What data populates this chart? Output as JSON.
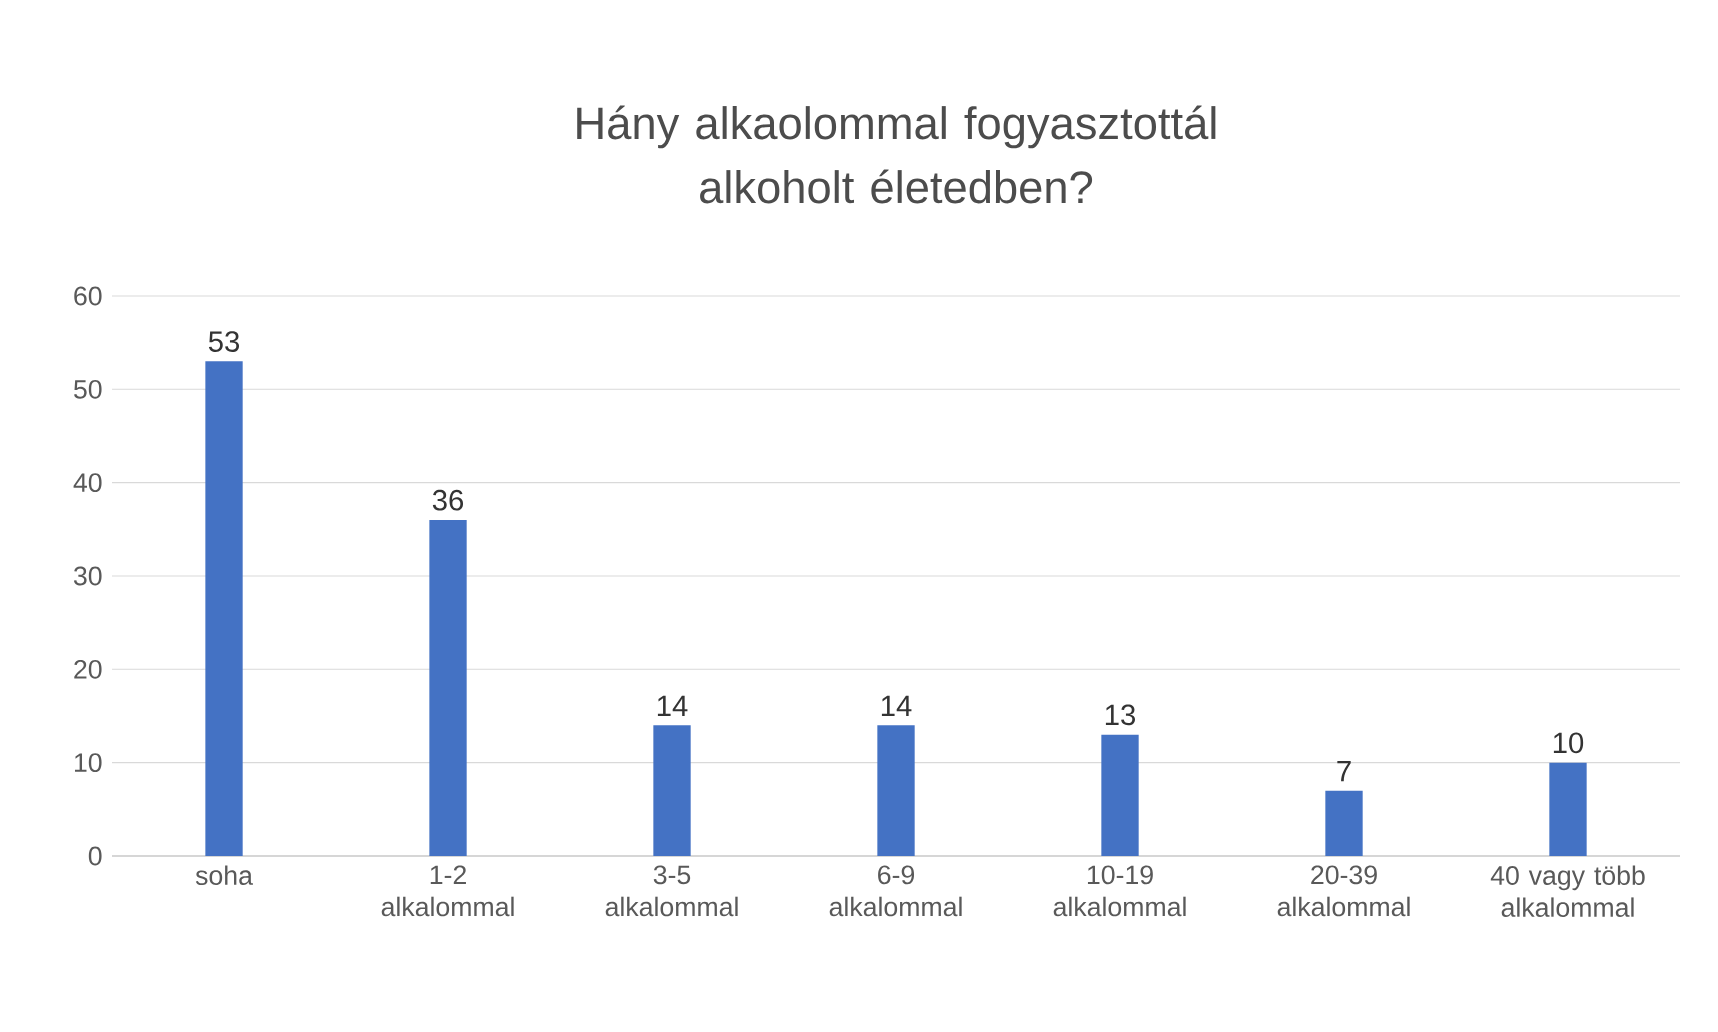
{
  "chart_data": {
    "type": "bar",
    "title": "Hány alkaolommal fogyasztottál alkoholt életedben?",
    "categories": [
      "soha",
      "1-2 alkalommal",
      "3-5 alkalommal",
      "6-9 alkalommal",
      "10-19 alkalommal",
      "20-39 alkalommal",
      "40 vagy több alkalommal"
    ],
    "values": [
      53,
      36,
      14,
      14,
      13,
      7,
      10
    ],
    "color": "#4472c4",
    "ylim": [
      0,
      60
    ],
    "yticks": [
      0,
      10,
      20,
      30,
      40,
      50,
      60
    ],
    "grid": "y",
    "data_labels": true
  }
}
